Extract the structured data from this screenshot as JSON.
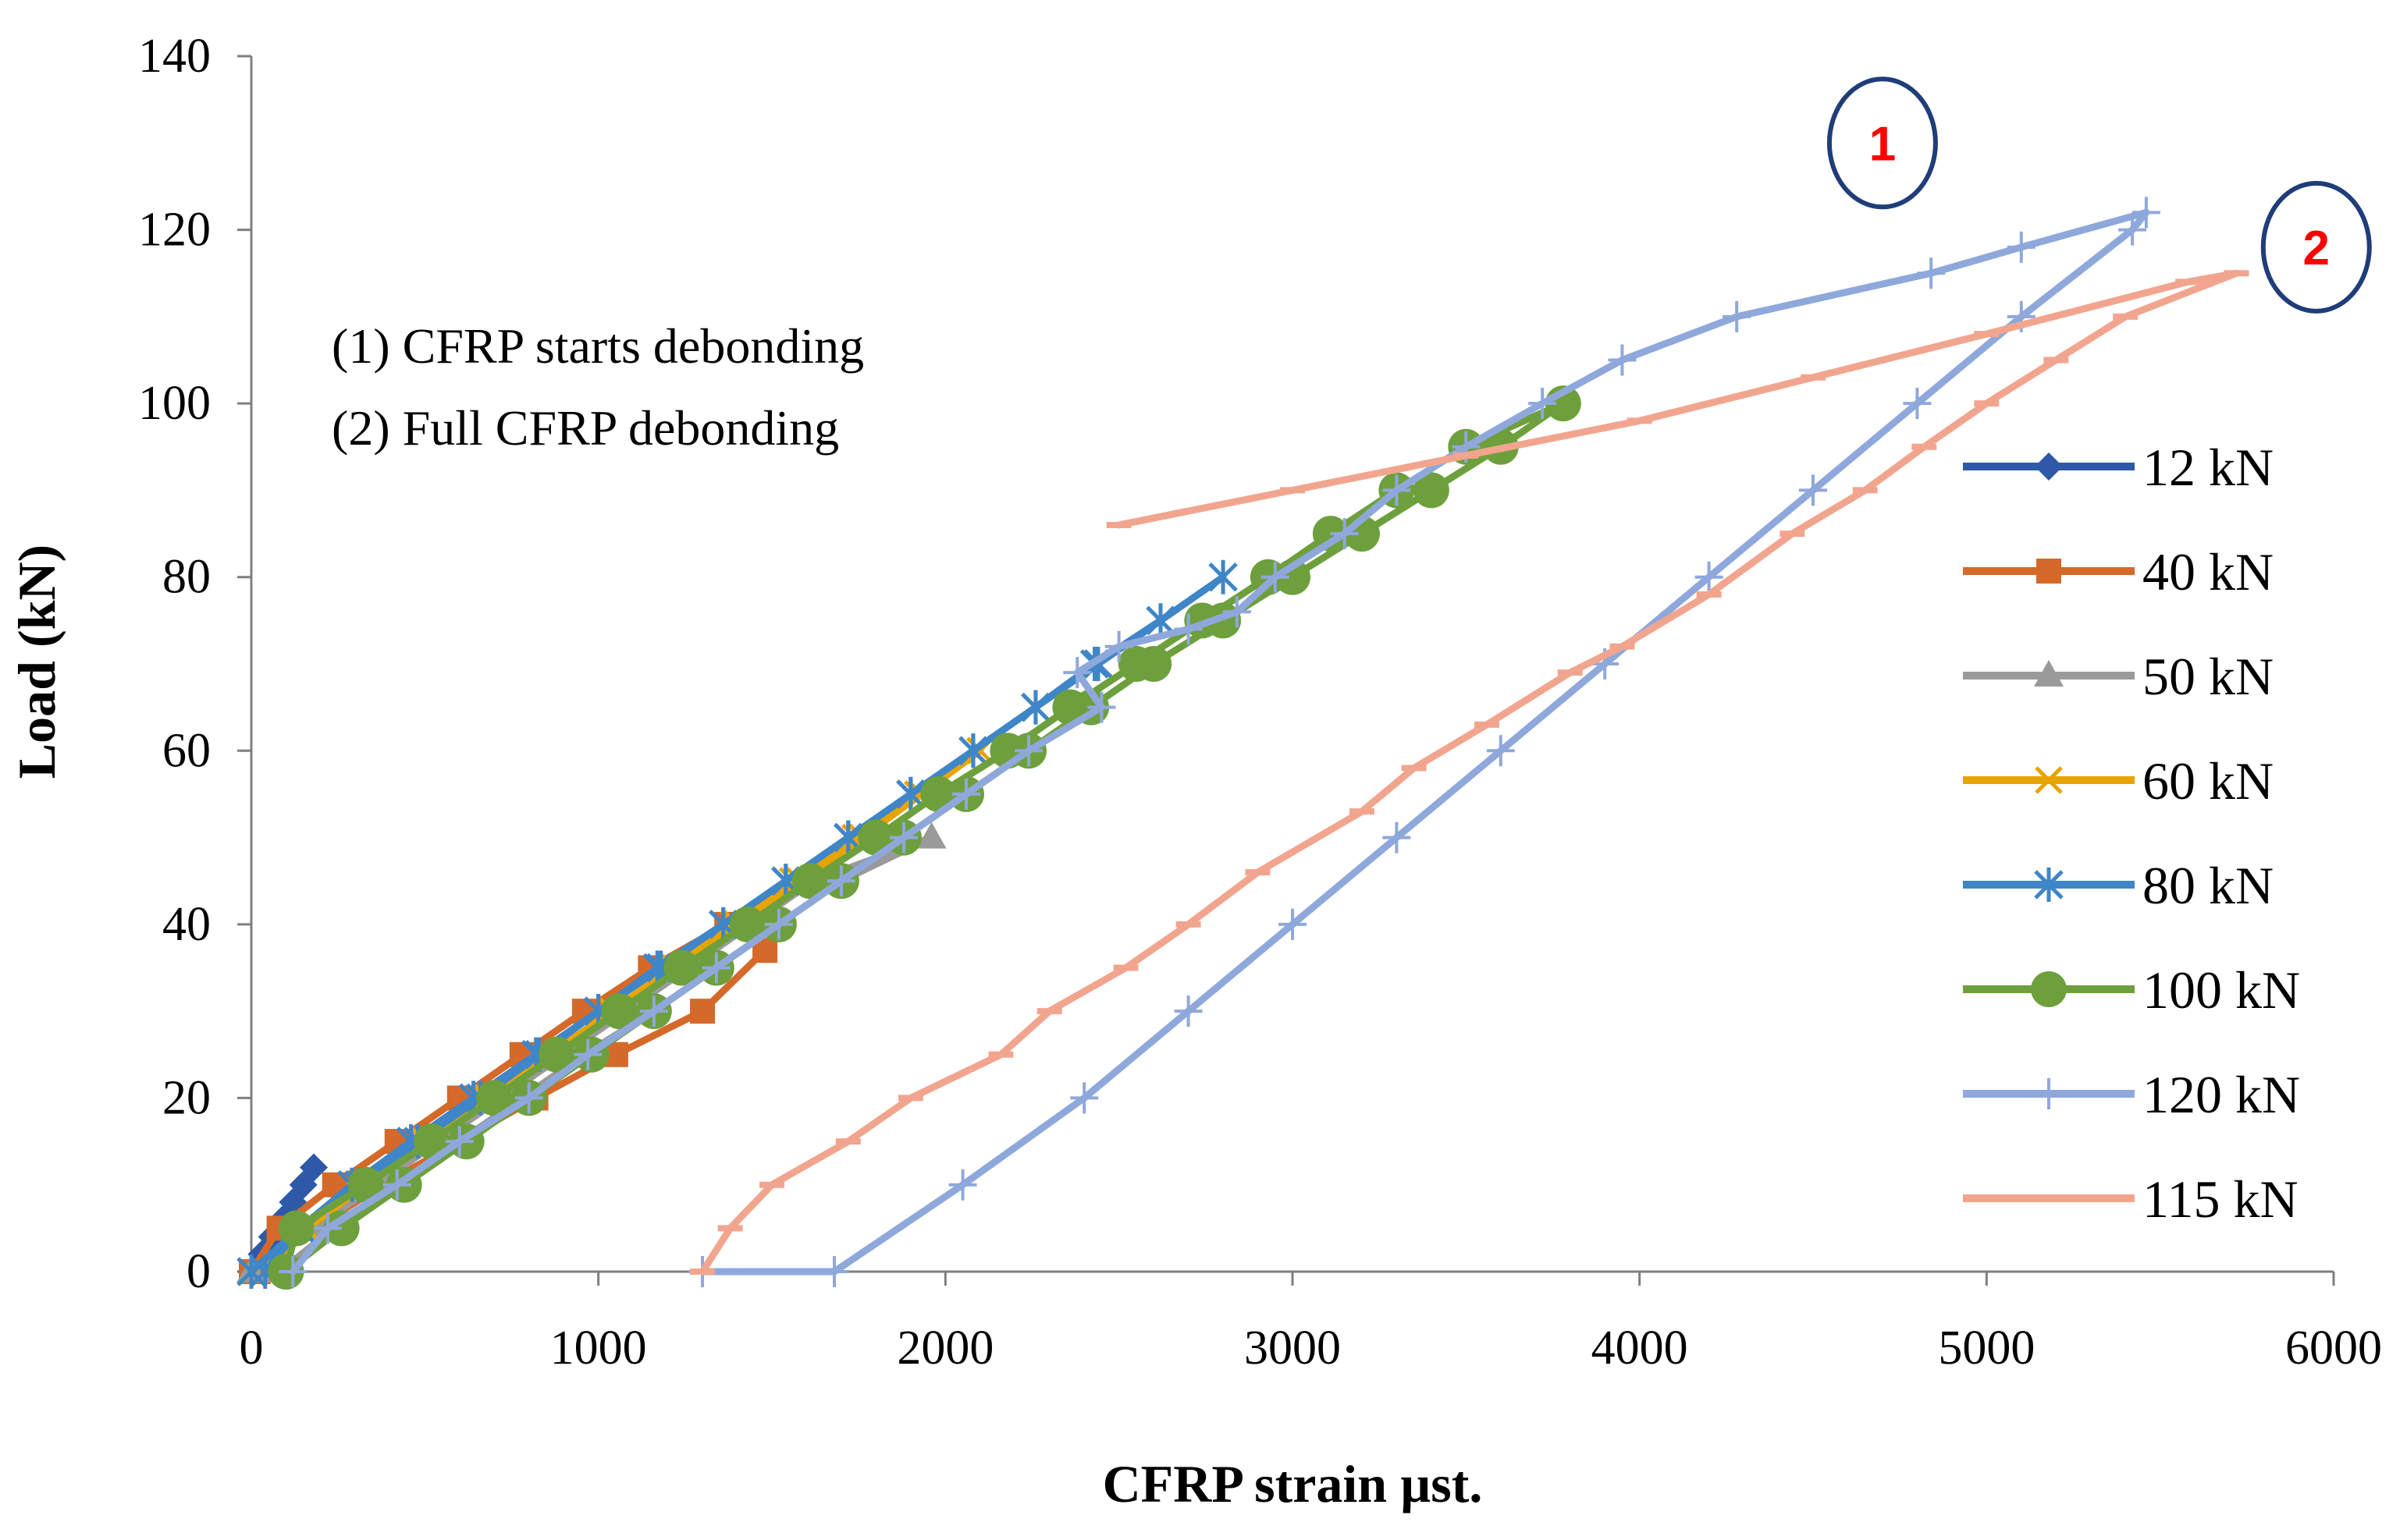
{
  "chart_data": {
    "type": "line",
    "title": "",
    "xlabel": "CFRP strain µst.",
    "ylabel": "Load  (kN)",
    "xlim": [
      0,
      6000
    ],
    "ylim": [
      0,
      140
    ],
    "xticks": [
      "0",
      "1000",
      "2000",
      "3000",
      "4000",
      "5000",
      "6000"
    ],
    "yticks": [
      "0",
      "20",
      "40",
      "60",
      "80",
      "100",
      "120",
      "140"
    ],
    "legend_position": "right",
    "series": [
      {
        "name": "12 kN",
        "color": "#2E59A8",
        "marker": "diamond",
        "points": [
          [
            0,
            0
          ],
          [
            30,
            2
          ],
          [
            60,
            4
          ],
          [
            90,
            6
          ],
          [
            120,
            8
          ],
          [
            150,
            10
          ],
          [
            180,
            12
          ]
        ]
      },
      {
        "name": "40 kN",
        "color": "#D4692A",
        "marker": "square",
        "points": [
          [
            0,
            0
          ],
          [
            80,
            5
          ],
          [
            240,
            10
          ],
          [
            420,
            15
          ],
          [
            600,
            20
          ],
          [
            780,
            25
          ],
          [
            960,
            30
          ],
          [
            1150,
            35
          ],
          [
            1370,
            40
          ],
          [
            1480,
            37
          ],
          [
            1300,
            30
          ],
          [
            1050,
            25
          ],
          [
            820,
            20
          ],
          [
            600,
            15
          ],
          [
            380,
            10
          ],
          [
            180,
            5
          ],
          [
            20,
            0
          ]
        ]
      },
      {
        "name": "50 kN",
        "color": "#9A9A9A",
        "marker": "triangle",
        "points": [
          [
            0,
            0
          ],
          [
            180,
            5
          ],
          [
            360,
            10
          ],
          [
            540,
            15
          ],
          [
            720,
            20
          ],
          [
            900,
            25
          ],
          [
            1080,
            30
          ],
          [
            1260,
            35
          ],
          [
            1440,
            40
          ],
          [
            1620,
            45
          ],
          [
            1960,
            50
          ],
          [
            1700,
            45
          ],
          [
            1520,
            40
          ],
          [
            1340,
            35
          ],
          [
            1160,
            30
          ],
          [
            960,
            25
          ],
          [
            780,
            20
          ],
          [
            600,
            15
          ],
          [
            420,
            10
          ],
          [
            240,
            5
          ],
          [
            80,
            0
          ]
        ]
      },
      {
        "name": "60 kN",
        "color": "#E8A400",
        "marker": "x",
        "points": [
          [
            0,
            0
          ],
          [
            160,
            5
          ],
          [
            330,
            10
          ],
          [
            510,
            15
          ],
          [
            690,
            20
          ],
          [
            860,
            25
          ],
          [
            1040,
            30
          ],
          [
            1210,
            35
          ],
          [
            1390,
            40
          ],
          [
            1560,
            45
          ],
          [
            1740,
            50
          ],
          [
            1920,
            55
          ],
          [
            2100,
            60
          ],
          [
            1930,
            55
          ],
          [
            1760,
            50
          ],
          [
            1580,
            45
          ],
          [
            1400,
            40
          ],
          [
            1220,
            35
          ],
          [
            1040,
            30
          ],
          [
            860,
            25
          ],
          [
            680,
            20
          ],
          [
            500,
            15
          ],
          [
            320,
            10
          ],
          [
            160,
            5
          ],
          [
            40,
            0
          ]
        ]
      },
      {
        "name": "80 kN",
        "color": "#3F86C8",
        "marker": "star",
        "points": [
          [
            0,
            0
          ],
          [
            140,
            5
          ],
          [
            310,
            10
          ],
          [
            480,
            15
          ],
          [
            660,
            20
          ],
          [
            830,
            25
          ],
          [
            1000,
            30
          ],
          [
            1170,
            35
          ],
          [
            1360,
            40
          ],
          [
            1540,
            45
          ],
          [
            1720,
            50
          ],
          [
            1900,
            55
          ],
          [
            2080,
            60
          ],
          [
            2260,
            65
          ],
          [
            2430,
            70
          ],
          [
            2620,
            75
          ],
          [
            2800,
            80
          ],
          [
            2620,
            75
          ],
          [
            2440,
            70
          ],
          [
            2260,
            65
          ],
          [
            2080,
            60
          ],
          [
            1900,
            55
          ],
          [
            1720,
            50
          ],
          [
            1540,
            45
          ],
          [
            1360,
            40
          ],
          [
            1180,
            35
          ],
          [
            1000,
            30
          ],
          [
            820,
            25
          ],
          [
            640,
            20
          ],
          [
            460,
            15
          ],
          [
            290,
            10
          ],
          [
            140,
            5
          ],
          [
            40,
            0
          ]
        ]
      },
      {
        "name": "100 kN",
        "color": "#6DA03C",
        "marker": "circle",
        "points": [
          [
            100,
            0
          ],
          [
            130,
            5
          ],
          [
            330,
            10
          ],
          [
            520,
            15
          ],
          [
            700,
            20
          ],
          [
            880,
            25
          ],
          [
            1060,
            30
          ],
          [
            1240,
            35
          ],
          [
            1430,
            40
          ],
          [
            1610,
            45
          ],
          [
            1800,
            50
          ],
          [
            1980,
            55
          ],
          [
            2180,
            60
          ],
          [
            2360,
            65
          ],
          [
            2550,
            70
          ],
          [
            2740,
            75
          ],
          [
            2930,
            80
          ],
          [
            3110,
            85
          ],
          [
            3300,
            90
          ],
          [
            3500,
            95
          ],
          [
            3780,
            100
          ],
          [
            3600,
            95
          ],
          [
            3400,
            90
          ],
          [
            3200,
            85
          ],
          [
            3000,
            80
          ],
          [
            2800,
            75
          ],
          [
            2600,
            70
          ],
          [
            2420,
            65
          ],
          [
            2240,
            60
          ],
          [
            2060,
            55
          ],
          [
            1880,
            50
          ],
          [
            1700,
            45
          ],
          [
            1520,
            40
          ],
          [
            1340,
            35
          ],
          [
            1160,
            30
          ],
          [
            980,
            25
          ],
          [
            800,
            20
          ],
          [
            620,
            15
          ],
          [
            440,
            10
          ],
          [
            260,
            5
          ],
          [
            100,
            0
          ]
        ]
      },
      {
        "name": "120 kN",
        "color": "#8FA8DC",
        "marker": "plus",
        "points": [
          [
            120,
            0
          ],
          [
            220,
            5
          ],
          [
            420,
            10
          ],
          [
            600,
            15
          ],
          [
            800,
            20
          ],
          [
            970,
            25
          ],
          [
            1160,
            30
          ],
          [
            1340,
            35
          ],
          [
            1520,
            40
          ],
          [
            1700,
            45
          ],
          [
            1880,
            50
          ],
          [
            2060,
            55
          ],
          [
            2240,
            60
          ],
          [
            2450,
            65
          ],
          [
            2380,
            69
          ],
          [
            2500,
            72
          ],
          [
            2700,
            74
          ],
          [
            2840,
            76
          ],
          [
            2950,
            80
          ],
          [
            3150,
            85
          ],
          [
            3300,
            90
          ],
          [
            3500,
            95
          ],
          [
            3720,
            100
          ],
          [
            3950,
            105
          ],
          [
            4280,
            110
          ],
          [
            4840,
            115
          ],
          [
            5100,
            118
          ],
          [
            5460,
            122
          ],
          [
            5420,
            120
          ],
          [
            5100,
            110
          ],
          [
            4800,
            100
          ],
          [
            4500,
            90
          ],
          [
            4200,
            80
          ],
          [
            3900,
            70
          ],
          [
            3600,
            60
          ],
          [
            3300,
            50
          ],
          [
            3000,
            40
          ],
          [
            2700,
            30
          ],
          [
            2400,
            20
          ],
          [
            2050,
            10
          ],
          [
            1680,
            0
          ],
          [
            1300,
            0
          ]
        ]
      },
      {
        "name": "115 kN",
        "color": "#F2A58E",
        "marker": "dash",
        "points": [
          [
            1300,
            0
          ],
          [
            1380,
            5
          ],
          [
            1500,
            10
          ],
          [
            1720,
            15
          ],
          [
            1900,
            20
          ],
          [
            2160,
            25
          ],
          [
            2300,
            30
          ],
          [
            2520,
            35
          ],
          [
            2700,
            40
          ],
          [
            2900,
            46
          ],
          [
            3200,
            53
          ],
          [
            3350,
            58
          ],
          [
            3560,
            63
          ],
          [
            3800,
            69
          ],
          [
            3950,
            72
          ],
          [
            4200,
            78
          ],
          [
            4440,
            85
          ],
          [
            4650,
            90
          ],
          [
            4820,
            95
          ],
          [
            5000,
            100
          ],
          [
            5200,
            105
          ],
          [
            5400,
            110
          ],
          [
            5720,
            115
          ],
          [
            5580,
            114
          ],
          [
            5000,
            108
          ],
          [
            4500,
            103
          ],
          [
            4000,
            98
          ],
          [
            3500,
            94
          ],
          [
            3000,
            90
          ],
          [
            2500,
            86
          ]
        ]
      }
    ],
    "annotations": [
      "(1) CFRP starts debonding",
      "(2) Full CFRP debonding"
    ],
    "callouts": [
      {
        "label": "1",
        "x": 4700,
        "y": 130
      },
      {
        "label": "2",
        "x": 5950,
        "y": 118
      }
    ]
  }
}
